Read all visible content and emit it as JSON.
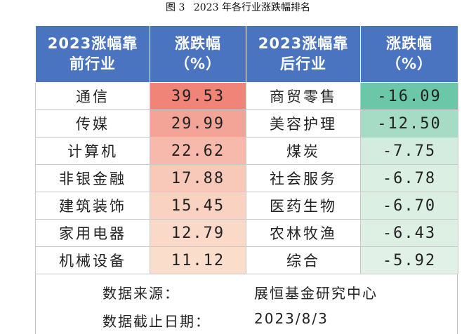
{
  "caption": {
    "figure": "图 3",
    "title": "2023 年各行业涨跌幅排名"
  },
  "headers": {
    "top_industry": "2023涨幅靠前行业",
    "top_change": "涨跌幅（%）",
    "bottom_industry": "2023涨幅靠后行业",
    "bottom_change": "涨跌幅（%）"
  },
  "rows": [
    {
      "top_name": "通信",
      "top_value": "39.53",
      "bottom_name": "商贸零售",
      "bottom_value": "-16.09"
    },
    {
      "top_name": "传媒",
      "top_value": "29.99",
      "bottom_name": "美容护理",
      "bottom_value": "-12.50"
    },
    {
      "top_name": "计算机",
      "top_value": "22.62",
      "bottom_name": "煤炭",
      "bottom_value": "-7.75"
    },
    {
      "top_name": "非银金融",
      "top_value": "17.88",
      "bottom_name": "社会服务",
      "bottom_value": "-6.78"
    },
    {
      "top_name": "建筑装饰",
      "top_value": "15.45",
      "bottom_name": "医药生物",
      "bottom_value": "-6.70"
    },
    {
      "top_name": "家用电器",
      "top_value": "12.79",
      "bottom_name": "农林牧渔",
      "bottom_value": "-6.43"
    },
    {
      "top_name": "机械设备",
      "top_value": "11.12",
      "bottom_name": "综合",
      "bottom_value": "-5.92"
    }
  ],
  "colors": {
    "header_bg": "#4a74bf",
    "top_scale": [
      "#f08478",
      "#f4a497",
      "#f6b9ab",
      "#f8c9b9",
      "#f9d2c2",
      "#fad9c9",
      "#fbddcc"
    ],
    "bottom_scale": [
      "#6cc7a8",
      "#a6dcc6",
      "#d4ecdf",
      "#dbefe2",
      "#dcefe3",
      "#deefe4",
      "#e2f1e7"
    ]
  },
  "source": {
    "label_source": "数据来源：",
    "value_source": "展恒基金研究中心",
    "label_date": "数据截止日期：",
    "value_date": "2023/8/3"
  }
}
